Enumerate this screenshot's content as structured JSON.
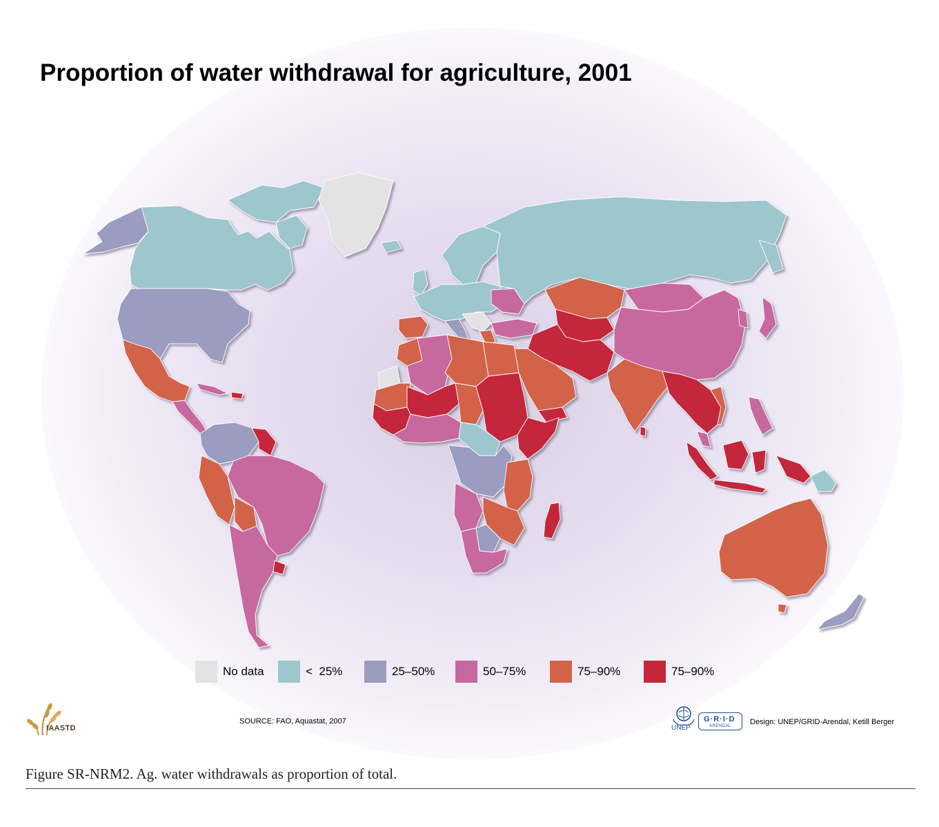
{
  "title": "Proportion of water withdrawal for agriculture, 2001",
  "legend": [
    {
      "label": "No data",
      "color": "#e3e3e3"
    },
    {
      "label": "<  25%",
      "color": "#9dc7cc"
    },
    {
      "label": "25–50%",
      "color": "#9a9cc0"
    },
    {
      "label": "50–75%",
      "color": "#c7679f"
    },
    {
      "label": "75–90%",
      "color": "#d2634a"
    },
    {
      "label": "75–90%",
      "color": "#c4263a"
    }
  ],
  "source": "SOURCE: FAO, Aquastat, 2007",
  "credit": "Design: UNEP/GRID-Arendal, Ketill Berger",
  "logos": {
    "iaastd": "IAASTD",
    "unep": "UNEP",
    "grid": "G·R·I·D",
    "grid_sub": "ARENDAL"
  },
  "caption": "Figure SR-NRM2. Ag. water withdrawals as proportion of total.",
  "colors": {
    "no_data": "#e3e3e3",
    "lt25": "#9dc7cc",
    "p25_50": "#9a9cc0",
    "p50_75": "#c7679f",
    "p75_90a": "#d2634a",
    "p75_90b": "#c4263a",
    "glow": "#d9cfe4"
  }
}
